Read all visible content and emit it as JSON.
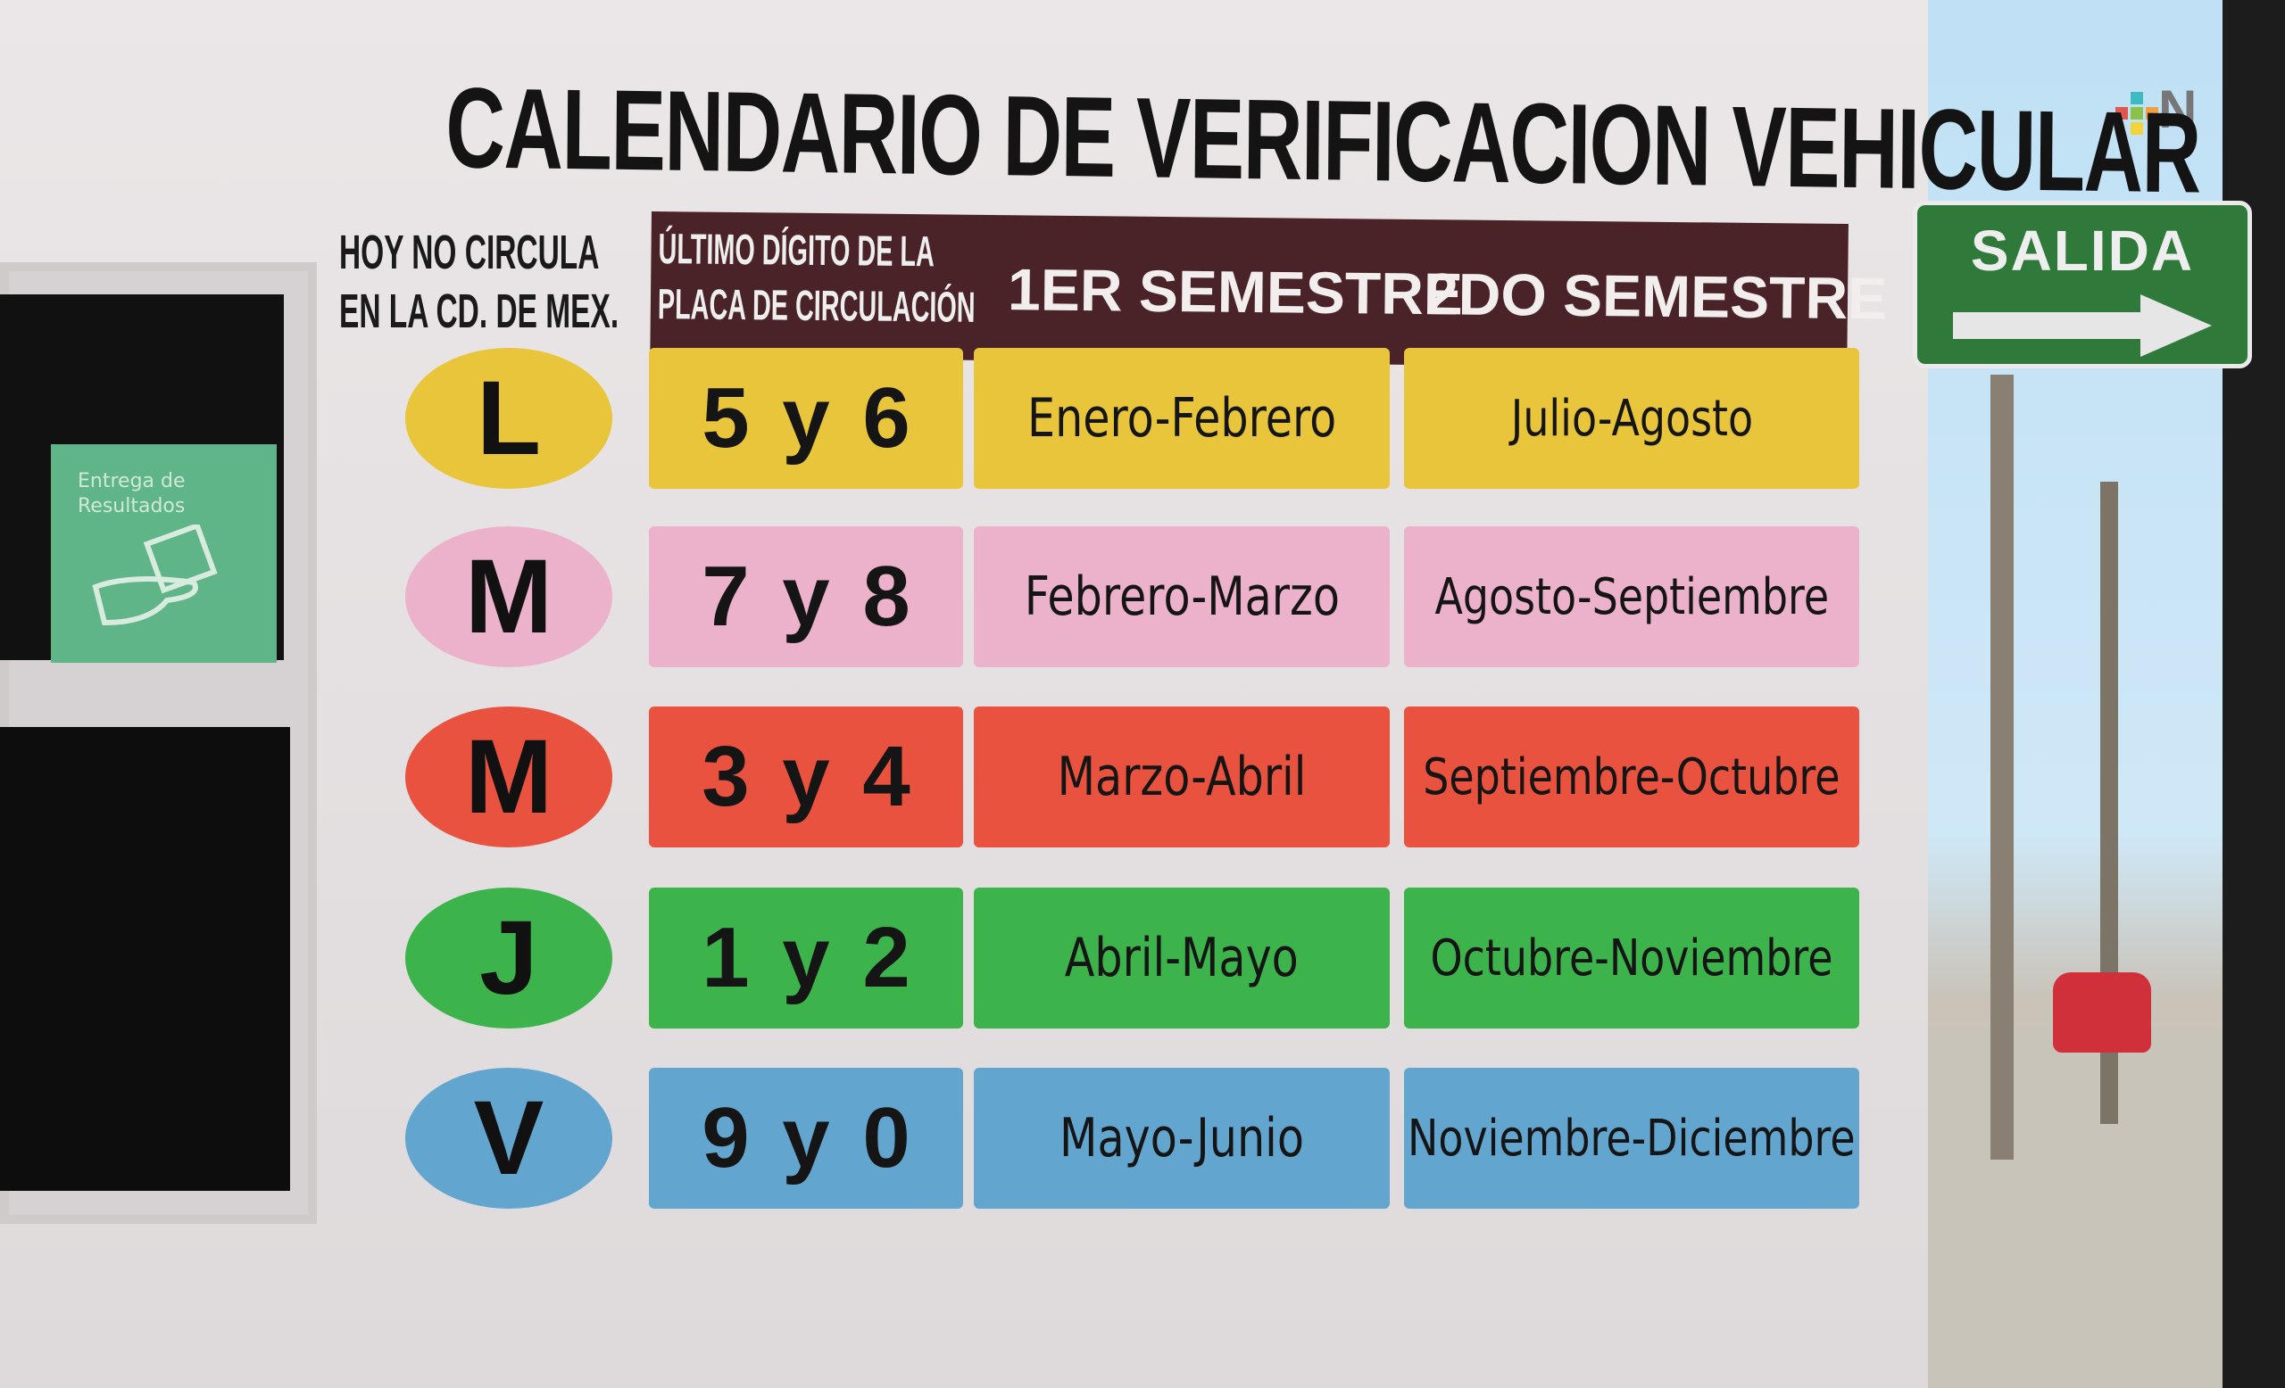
{
  "title": "CALENDARIO DE VERIFICACION VEHICULAR",
  "side_label": [
    "HOY NO CIRCULA",
    "EN LA CD. DE MEX."
  ],
  "header": {
    "digit_col": [
      "ÚLTIMO DÍGITO DE LA",
      "PLACA DE CIRCULACIÓN"
    ],
    "sem1": "1ER SEMESTRE",
    "sem2": "2DO SEMESTRE"
  },
  "rows": [
    {
      "day": "L",
      "digits": "5 y 6",
      "sem1": "Enero-Febrero",
      "sem2": "Julio-Agosto",
      "color": "#e8c53a"
    },
    {
      "day": "M",
      "digits": "7 y 8",
      "sem1": "Febrero-Marzo",
      "sem2": "Agosto-Septiembre",
      "color": "#ecb2cb"
    },
    {
      "day": "M",
      "digits": "3 y 4",
      "sem1": "Marzo-Abril",
      "sem2": "Septiembre-Octubre",
      "color": "#e8523f"
    },
    {
      "day": "J",
      "digits": "1 y 2",
      "sem1": "Abril-Mayo",
      "sem2": "Octubre-Noviembre",
      "color": "#3db34c"
    },
    {
      "day": "V",
      "digits": "9 y 0",
      "sem1": "Mayo-Junio",
      "sem2": "Noviembre-Diciembre",
      "color": "#62a5cf"
    }
  ],
  "window_sign": [
    "Entrega de",
    "Resultados"
  ],
  "street_sign": "SALIDA",
  "watermark": "N",
  "colors": {
    "header_bg": "#4a2328",
    "sign_green": "#2f7a3a"
  }
}
